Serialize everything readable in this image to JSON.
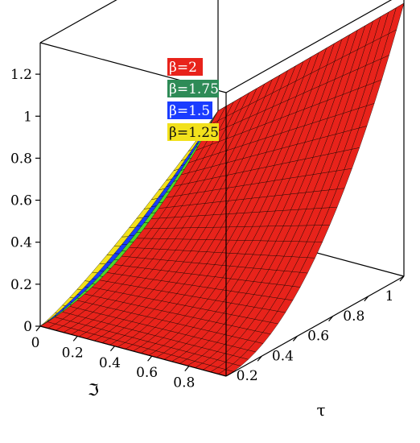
{
  "chart_data": {
    "type": "surface3d",
    "title": "",
    "x_axis": {
      "label": "ℑ",
      "ticks": [
        "0",
        "0.2",
        "0.4",
        "0.6",
        "0.8"
      ],
      "range": [
        0,
        1
      ]
    },
    "y_axis": {
      "label": "τ",
      "ticks": [
        "0.2",
        "0.4",
        "0.6",
        "0.8",
        "1"
      ],
      "range": [
        0,
        1
      ]
    },
    "z_axis": {
      "label": "",
      "ticks": [
        "0",
        "0.2",
        "0.4",
        "0.6",
        "0.8",
        "1",
        "1.2"
      ],
      "range": [
        0,
        1.35
      ]
    },
    "legend": {
      "placement": "top-center",
      "entries": [
        {
          "label": "β=2",
          "color": "#e8231b"
        },
        {
          "label": "β=1.75",
          "color": "#2e8b57"
        },
        {
          "label": "β=1.5",
          "color": "#1a3cff"
        },
        {
          "label": "β=1.25",
          "color": "#f2e11c"
        }
      ]
    },
    "series": [
      {
        "name": "β=2",
        "beta": 2,
        "color": "#e8231b",
        "corners": {
          "tau0_f0": 0,
          "tau0_f1": 0,
          "tau1_f0": 0.55,
          "tau1_f1": 1.3
        }
      },
      {
        "name": "β=1.75",
        "beta": 1.75,
        "color": "#4cd62a",
        "corners": {
          "tau0_f0": 0,
          "tau0_f1": 0,
          "tau1_f0": 0.55,
          "tau1_f1": 1.3
        }
      },
      {
        "name": "β=1.5",
        "beta": 1.5,
        "color": "#1a3cff",
        "corners": {
          "tau0_f0": 0,
          "tau0_f1": 0,
          "tau1_f0": 0.55,
          "tau1_f1": 1.3
        }
      },
      {
        "name": "β=1.25",
        "beta": 1.25,
        "color": "#f2e11c",
        "corners": {
          "tau0_f0": 0,
          "tau0_f1": 0,
          "tau1_f0": 0.55,
          "tau1_f1": 1.3
        }
      }
    ],
    "box": true,
    "grid": true
  }
}
